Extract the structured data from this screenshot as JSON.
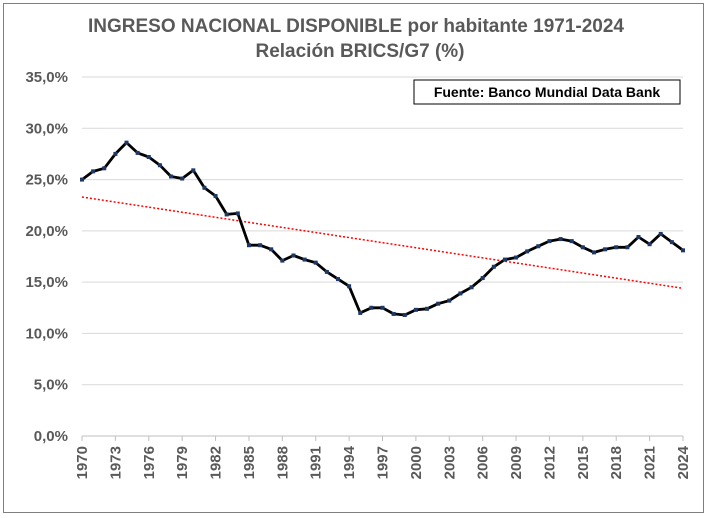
{
  "chart_data": {
    "type": "line",
    "title": "INGRESO NACIONAL DISPONIBLE por habitante 1971-2024",
    "subtitle": "Relación BRICS/G7 (%)",
    "source_note": "Fuente: Banco Mundial Data Bank",
    "ylim": [
      0,
      35
    ],
    "y_ticks": [
      0,
      5,
      10,
      15,
      20,
      25,
      30,
      35
    ],
    "y_tick_labels": [
      "0,0%",
      "5,0%",
      "10,0%",
      "15,0%",
      "20,0%",
      "25,0%",
      "30,0%",
      "35,0%"
    ],
    "x_range": [
      1970,
      2024
    ],
    "x_ticks": [
      "1970",
      "1973",
      "1976",
      "1979",
      "1982",
      "1985",
      "1988",
      "1991",
      "1994",
      "1997",
      "2000",
      "2003",
      "2006",
      "2009",
      "2012",
      "2015",
      "2018",
      "2021",
      "2024"
    ],
    "grid": true,
    "series": [
      {
        "color": "#000000",
        "marker_color": "#1f3864",
        "x": [
          1970,
          1971,
          1972,
          1973,
          1974,
          1975,
          1976,
          1977,
          1978,
          1979,
          1980,
          1981,
          1982,
          1983,
          1984,
          1985,
          1986,
          1987,
          1988,
          1989,
          1990,
          1991,
          1992,
          1993,
          1994,
          1995,
          1996,
          1997,
          1998,
          1999,
          2000,
          2001,
          2002,
          2003,
          2004,
          2005,
          2006,
          2007,
          2008,
          2009,
          2010,
          2011,
          2012,
          2013,
          2014,
          2015,
          2016,
          2017,
          2018,
          2019,
          2020,
          2021,
          2022,
          2023,
          2024
        ],
        "values": [
          25.0,
          25.8,
          26.1,
          27.5,
          28.6,
          27.6,
          27.2,
          26.4,
          25.3,
          25.1,
          25.9,
          24.2,
          23.4,
          21.6,
          21.7,
          18.6,
          18.6,
          18.2,
          17.1,
          17.6,
          17.2,
          16.9,
          16.0,
          15.3,
          14.6,
          12.0,
          12.5,
          12.5,
          11.9,
          11.8,
          12.3,
          12.4,
          12.9,
          13.2,
          13.9,
          14.5,
          15.4,
          16.5,
          17.2,
          17.4,
          18.0,
          18.5,
          19.0,
          19.2,
          19.0,
          18.4,
          17.9,
          18.2,
          18.4,
          18.4,
          19.4,
          18.7,
          19.7,
          18.9,
          18.1
        ]
      },
      {
        "type": "trendline",
        "color": "#ff0000",
        "style": "dotted",
        "x": [
          1970,
          2024
        ],
        "values": [
          23.3,
          14.4
        ]
      }
    ]
  }
}
